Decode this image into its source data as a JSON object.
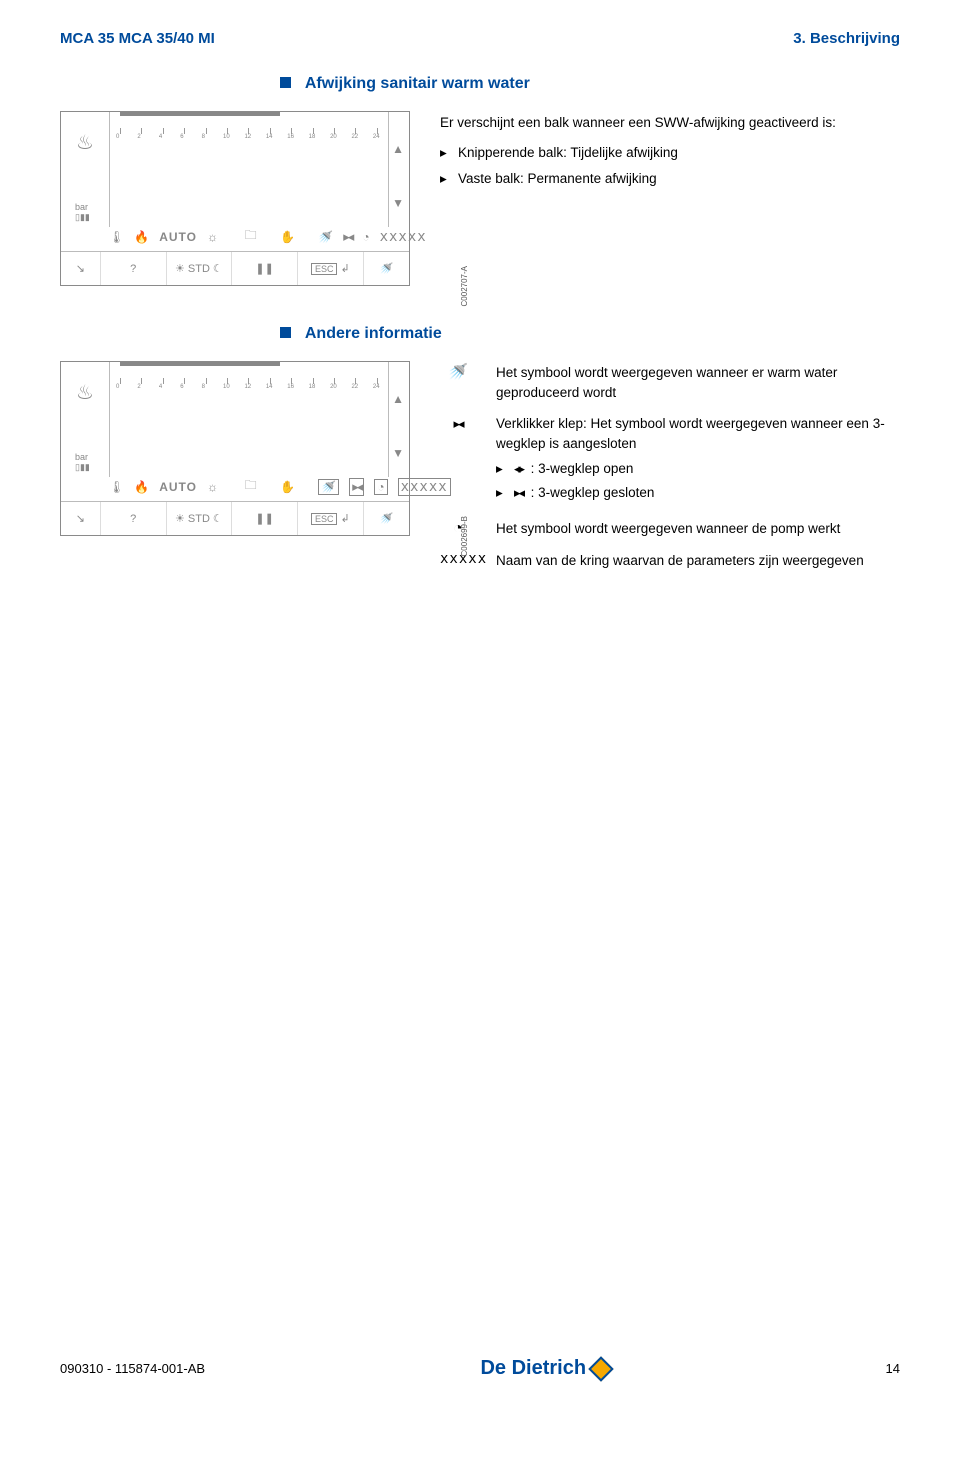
{
  "header": {
    "left": "MCA 35 MCA 35/40 MI",
    "right": "3.  Beschrijving"
  },
  "section1": {
    "title": "Afwijking sanitair warm water",
    "intro": "Er verschijnt een balk wanneer een SWW-afwijking geactiveerd is:",
    "bullets": [
      "Knipperende balk: Tijdelijke afwijking",
      "Vaste balk: Permanente afwijking"
    ],
    "panel_code": "C002707-A"
  },
  "section2": {
    "title": "Andere informatie",
    "panel_code": "C002699-B",
    "defs": [
      {
        "sym": "tap",
        "text": "Het symbool wordt weergegeven wanneer er warm water geproduceerd wordt"
      },
      {
        "sym": "valve",
        "text": "Verklikker klep: Het symbool wordt weergegeven wanneer een 3-wegklep is aangesloten",
        "subs": [
          {
            "sym": "valve_open",
            "text": ": 3-wegklep open"
          },
          {
            "sym": "valve_close",
            "text": ": 3-wegklep gesloten"
          }
        ]
      },
      {
        "sym": "pump",
        "text": "Het symbool wordt weergegeven wanneer de pomp werkt"
      },
      {
        "sym": "xxxxx",
        "text": "Naam van de kring waarvan de parameters zijn weergegeven"
      }
    ]
  },
  "lcd": {
    "hours": [
      "0",
      "2",
      "4",
      "6",
      "8",
      "10",
      "12",
      "14",
      "16",
      "18",
      "20",
      "22",
      "24"
    ],
    "auto_label": "AUTO",
    "row1_tail": "xxxxx",
    "bar_label": "bar",
    "btn_q": "?",
    "btn_std": "STD",
    "btn_esc": "ESC"
  },
  "footer": {
    "left": "090310  - 115874-001-AB",
    "brand": "De Dietrich",
    "page": "14"
  },
  "colors": {
    "brand_blue": "#004b9b",
    "logo_orange": "#f6a800",
    "gray": "#8a8a8a"
  }
}
